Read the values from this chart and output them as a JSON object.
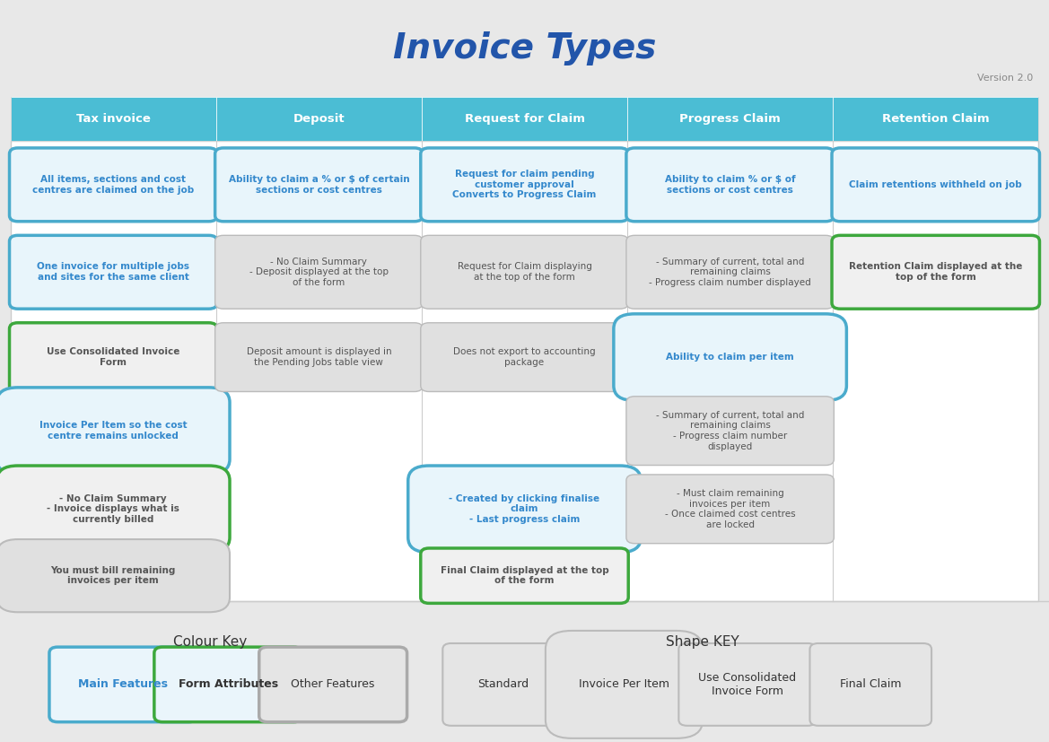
{
  "title": "Invoice Types",
  "version": "Version 2.0",
  "bg_color": "#e8e8e8",
  "header_color": "#4bbdd4",
  "white": "#ffffff",
  "columns": [
    "Tax invoice",
    "Deposit",
    "Request for Claim",
    "Progress Claim",
    "Retention Claim"
  ],
  "blue_border": "#4aabcc",
  "green_border": "#3da83d",
  "gray_border": "#aaaaaa",
  "blue_fill": "#e8f5fb",
  "gray_fill": "#e0e0e0",
  "blue_text": "#3388cc",
  "dark_text": "#555555",
  "cells": {
    "tax": [
      {
        "text": "All items, sections and cost\ncentres are claimed on the job",
        "style": "blue_rounded",
        "row": 0
      },
      {
        "text": "One invoice for multiple jobs\nand sites for the same client",
        "style": "blue_rounded",
        "row": 1
      },
      {
        "text": "Use Consolidated Invoice\nForm",
        "style": "green_hex",
        "row": 2
      },
      {
        "text": "Invoice Per Item so the cost\ncentre remains unlocked",
        "style": "blue_pill",
        "row": 3
      },
      {
        "text": "- No Claim Summary\n- Invoice displays what is\ncurrently billed",
        "style": "green_pill",
        "row": 4
      },
      {
        "text": "You must bill remaining\ninvoices per item",
        "style": "gray_pill",
        "row": 5
      }
    ],
    "deposit": [
      {
        "text": "Ability to claim a % or $ of certain\nsections or cost centres",
        "style": "blue_rounded",
        "row": 0
      },
      {
        "text": "- No Claim Summary\n- Deposit displayed at the top\nof the form",
        "style": "gray_rect",
        "row": 1
      },
      {
        "text": "Deposit amount is displayed in\nthe Pending Jobs table view",
        "style": "gray_rect",
        "row": 2
      }
    ],
    "request": [
      {
        "text": "Request for claim pending\ncustomer approval\nConverts to Progress Claim",
        "style": "blue_rounded",
        "row": 0
      },
      {
        "text": "Request for Claim displaying\nat the top of the form",
        "style": "gray_rect",
        "row": 1
      },
      {
        "text": "Does not export to accounting\npackage",
        "style": "gray_rect",
        "row": 2
      },
      {
        "text": "- Created by clicking finalise\nclaim\n- Last progress claim",
        "style": "blue_pill",
        "row": 4
      },
      {
        "text": "Final Claim displayed at the top\nof the form",
        "style": "green_hex",
        "row": 5
      }
    ],
    "progress": [
      {
        "text": "Ability to claim % or $ of\nsections or cost centres",
        "style": "blue_rounded",
        "row": 0
      },
      {
        "text": "- Summary of current, total and\nremaining claims\n- Progress claim number displayed",
        "style": "gray_rect",
        "row": 1
      },
      {
        "text": "Ability to claim per item",
        "style": "blue_pill",
        "row": 2
      },
      {
        "text": "- Summary of current, total and\nremaining claims\n- Progress claim number\ndisplayed",
        "style": "gray_rect",
        "row": 3
      },
      {
        "text": "- Must claim remaining\ninvoices per item\n- Once claimed cost centres\nare locked",
        "style": "gray_rect",
        "row": 4
      }
    ],
    "retention": [
      {
        "text": "Claim retentions withheld on job",
        "style": "blue_rounded",
        "row": 0
      },
      {
        "text": "Retention Claim displayed at the\ntop of the form",
        "style": "green_hex",
        "row": 1
      }
    ]
  }
}
